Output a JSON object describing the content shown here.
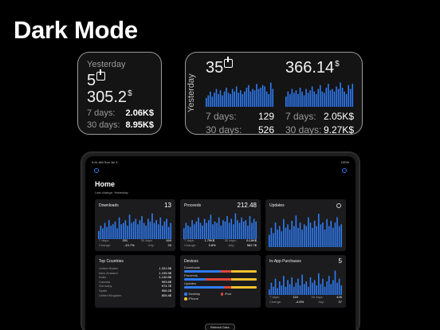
{
  "hero": {
    "title": "Dark Mode"
  },
  "widget_small": {
    "yesterday_label": "Yesterday",
    "downloads": "5",
    "proceeds": "305.2",
    "currency": "$",
    "rows": [
      {
        "label": "7 days:",
        "value": "2.06K$"
      },
      {
        "label": "30 days:",
        "value": "8.95K$"
      }
    ]
  },
  "widget_wide": {
    "yesterday_label": "Yesterday",
    "downloads": "35",
    "proceeds": "366.14",
    "currency": "$",
    "downloads_rows": [
      {
        "label": "7 days:",
        "value": "129"
      },
      {
        "label": "30 days:",
        "value": "526"
      }
    ],
    "proceeds_rows": [
      {
        "label": "7 days:",
        "value": "2.05K$"
      },
      {
        "label": "30 days:",
        "value": "9.27K$"
      }
    ],
    "downloads_bars": [
      0.35,
      0.45,
      0.6,
      0.4,
      0.55,
      0.7,
      0.5,
      0.65,
      0.45,
      0.6,
      0.75,
      0.55,
      0.5,
      0.7,
      0.6,
      0.8,
      0.55,
      0.65,
      0.5,
      0.6,
      0.75,
      0.85,
      0.6,
      0.7,
      0.65,
      0.9,
      0.7,
      0.75,
      0.85,
      0.8,
      0.6,
      0.5,
      0.95,
      0.7
    ],
    "proceeds_bars": [
      0.4,
      0.6,
      0.5,
      0.7,
      0.55,
      0.65,
      0.5,
      0.75,
      0.6,
      0.45,
      0.7,
      0.55,
      0.65,
      0.8,
      0.6,
      0.5,
      0.7,
      0.85,
      0.6,
      0.55,
      0.75,
      0.9,
      0.65,
      0.7,
      0.6,
      0.8,
      0.7,
      0.95,
      0.75,
      0.6,
      0.5,
      0.85,
      0.7,
      0.9
    ]
  },
  "ipad": {
    "status_left": "9:41 AM   Sun Jul 3",
    "status_right": "100%",
    "home_title": "Home",
    "last_change": "Last change: Yesterday",
    "downloads": {
      "title": "Downloads",
      "value": "13",
      "stats": [
        {
          "l1": "7 days:",
          "v1": "291",
          "l2": "30 days:",
          "v2": "449"
        },
        {
          "l1": "Change:",
          "v1": "-13.7%",
          "l2": "July:",
          "v2": "33"
        }
      ],
      "bars": [
        0.3,
        0.5,
        0.4,
        0.6,
        0.45,
        0.7,
        0.5,
        0.55,
        0.65,
        0.4,
        0.8,
        0.55,
        0.6,
        0.7,
        0.5,
        0.9,
        0.6,
        0.65,
        0.75,
        0.55,
        0.7,
        0.85,
        0.6,
        0.5,
        0.75,
        0.65,
        0.95,
        0.6,
        0.7,
        0.55,
        0.8,
        0.5,
        0.65,
        0.75,
        0.45,
        0.6
      ]
    },
    "proceeds": {
      "title": "Proceeds",
      "value": "212.48",
      "stats": [
        {
          "l1": "7 days:",
          "v1": "1.75K$",
          "l2": "30 days:",
          "v2": "6.16K$"
        },
        {
          "l1": "Change:",
          "v1": "3.8%",
          "l2": "July:",
          "v2": "562.7$"
        }
      ],
      "bars": [
        0.4,
        0.6,
        0.5,
        0.45,
        0.7,
        0.55,
        0.65,
        0.8,
        0.6,
        0.5,
        0.75,
        0.6,
        0.7,
        0.9,
        0.55,
        0.65,
        0.6,
        0.8,
        0.5,
        0.7,
        0.65,
        0.85,
        0.6,
        0.75,
        0.55,
        0.95,
        0.7,
        0.6,
        0.8,
        0.65,
        0.7,
        0.5,
        0.85,
        0.6,
        0.75,
        0.65
      ]
    },
    "updates": {
      "title": "Updates",
      "bars": [
        0.35,
        0.55,
        0.4,
        0.7,
        0.5,
        0.6,
        0.45,
        0.8,
        0.55,
        0.65,
        0.5,
        0.75,
        0.6,
        0.9,
        0.55,
        0.7,
        0.5,
        0.65,
        0.6,
        0.85,
        0.7,
        0.55,
        0.75,
        0.6,
        0.95,
        0.65,
        0.7,
        0.5,
        0.8,
        0.6,
        0.75,
        0.55,
        0.7,
        0.85,
        0.6,
        0.65
      ]
    },
    "top_countries": {
      "title": "Top Countries",
      "rows": [
        {
          "name": "United States",
          "value": "1,331.5$"
        },
        {
          "name": "New Zealand",
          "value": "1,195.9$"
        },
        {
          "name": "India",
          "value": "1,140.8$"
        },
        {
          "name": "Canada",
          "value": "993.6$"
        },
        {
          "name": "Germany",
          "value": "974.7$"
        },
        {
          "name": "Spain",
          "value": "956.2$"
        },
        {
          "name": "United Kingdom",
          "value": "805.4$"
        }
      ]
    },
    "devices": {
      "title": "Devices",
      "downloads_label": "Downloads",
      "proceeds_label": "Proceeds",
      "updates_label": "Updates",
      "legend": {
        "desktop": "Desktop",
        "ipad": "iPad",
        "iphone": "iPhone"
      },
      "colors": {
        "desktop": "#2f7cf6",
        "ipad": "#e0453a",
        "iphone": "#f2c12e"
      }
    },
    "in_app": {
      "title": "In-App Purchases",
      "value": "5",
      "stats": [
        {
          "l1": "7 days:",
          "v1": "119",
          "l2": "30 days:",
          "v2": "426"
        },
        {
          "l1": "Change:",
          "v1": "-4.6%",
          "l2": "July:",
          "v2": "37"
        }
      ],
      "bars": [
        0.2,
        0.45,
        0.3,
        0.6,
        0.25,
        0.5,
        0.35,
        0.7,
        0.3,
        0.55,
        0.4,
        0.65,
        0.3,
        0.45,
        0.6,
        0.35,
        0.75,
        0.4,
        0.5,
        0.3,
        0.65,
        0.45,
        0.55,
        0.35,
        0.8,
        0.4,
        0.6,
        0.3,
        0.5,
        0.7,
        0.4,
        0.55,
        0.9,
        0.45,
        0.6,
        0.35
      ]
    },
    "refresh_label": "Refresh Data",
    "accent": "#2f7cf6"
  }
}
